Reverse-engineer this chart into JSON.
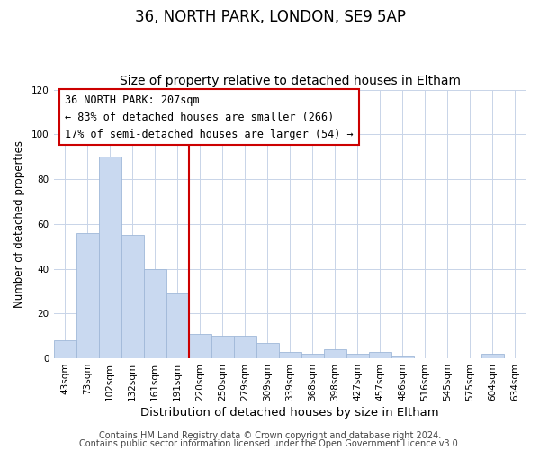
{
  "title": "36, NORTH PARK, LONDON, SE9 5AP",
  "subtitle": "Size of property relative to detached houses in Eltham",
  "xlabel": "Distribution of detached houses by size in Eltham",
  "ylabel": "Number of detached properties",
  "categories": [
    "43sqm",
    "73sqm",
    "102sqm",
    "132sqm",
    "161sqm",
    "191sqm",
    "220sqm",
    "250sqm",
    "279sqm",
    "309sqm",
    "339sqm",
    "368sqm",
    "398sqm",
    "427sqm",
    "457sqm",
    "486sqm",
    "516sqm",
    "545sqm",
    "575sqm",
    "604sqm",
    "634sqm"
  ],
  "values": [
    8,
    56,
    90,
    55,
    40,
    29,
    11,
    10,
    10,
    7,
    3,
    2,
    4,
    2,
    3,
    1,
    0,
    0,
    0,
    2,
    0
  ],
  "bar_color": "#c9d9f0",
  "bar_edge_color": "#a0b8d8",
  "ylim": [
    0,
    120
  ],
  "yticks": [
    0,
    20,
    40,
    60,
    80,
    100,
    120
  ],
  "vline_x": 5.5,
  "vline_color": "#cc0000",
  "annotation_title": "36 NORTH PARK: 207sqm",
  "annotation_line1": "← 83% of detached houses are smaller (266)",
  "annotation_line2": "17% of semi-detached houses are larger (54) →",
  "annotation_box_color": "#ffffff",
  "annotation_box_edge": "#cc0000",
  "footer1": "Contains HM Land Registry data © Crown copyright and database right 2024.",
  "footer2": "Contains public sector information licensed under the Open Government Licence v3.0.",
  "title_fontsize": 12,
  "subtitle_fontsize": 10,
  "xlabel_fontsize": 9.5,
  "ylabel_fontsize": 8.5,
  "tick_fontsize": 7.5,
  "footer_fontsize": 7,
  "annotation_fontsize": 8.5,
  "annotation_title_fontsize": 9
}
